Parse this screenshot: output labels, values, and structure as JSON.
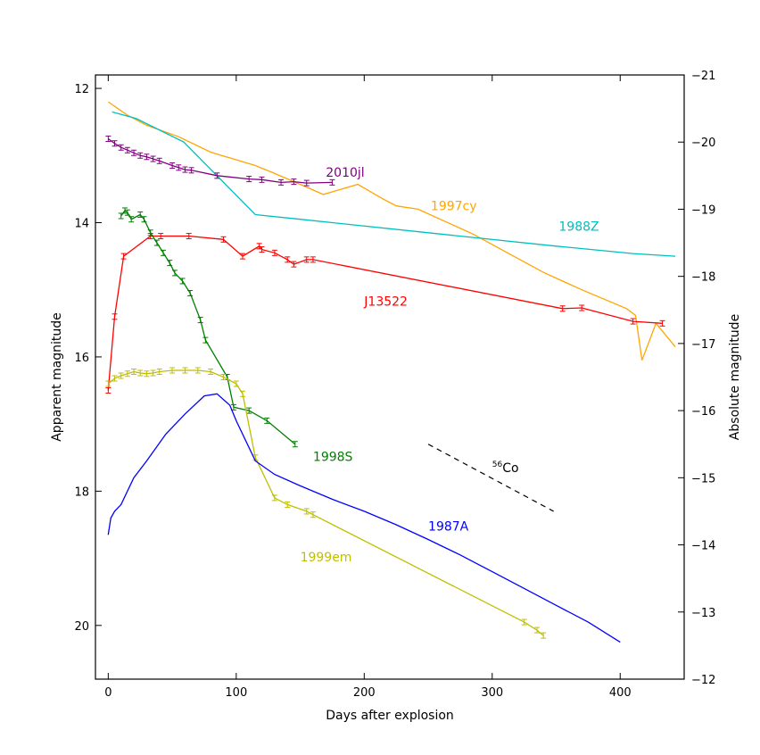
{
  "chart_data": {
    "type": "line",
    "xlabel": "Days after explosion",
    "ylabel": "Apparent magnitude",
    "ylabel_right": "Absolute magnitude",
    "xlim": [
      -10,
      450
    ],
    "ylim": [
      20.8,
      11.8
    ],
    "ylim_right": [
      -12,
      -21
    ],
    "x_ticks": [
      0,
      100,
      200,
      300,
      400
    ],
    "y_ticks": [
      12,
      14,
      16,
      18,
      20
    ],
    "y_right_ticks": [
      -21,
      -20,
      -19,
      -18,
      -17,
      -16,
      -15,
      -14,
      -13,
      -12
    ],
    "grid": false,
    "legend": "none",
    "annotation": {
      "label_prefix": "56",
      "label_text": "Co",
      "line_start": [
        250,
        17.3
      ],
      "line_end": [
        348,
        18.3
      ],
      "label_pos": [
        300,
        17.65
      ]
    },
    "series": [
      {
        "name": "1997cy",
        "color": "#FFA500",
        "errorbars": false,
        "label_pos": [
          252,
          13.75
        ],
        "x": [
          0,
          15,
          30,
          55,
          80,
          115,
          128,
          150,
          168,
          195,
          215,
          225,
          242,
          285,
          340,
          370,
          405,
          412,
          417,
          428,
          443
        ],
        "y": [
          12.2,
          12.4,
          12.55,
          12.72,
          12.95,
          13.15,
          13.25,
          13.43,
          13.58,
          13.43,
          13.65,
          13.75,
          13.8,
          14.17,
          14.74,
          15.0,
          15.28,
          15.38,
          16.05,
          15.5,
          15.85
        ]
      },
      {
        "name": "1988Z",
        "color": "#00BFBF",
        "errorbars": false,
        "label_pos": [
          352,
          14.05
        ],
        "x": [
          3,
          22,
          59,
          115,
          150,
          250,
          350,
          410,
          443
        ],
        "y": [
          12.35,
          12.45,
          12.8,
          13.88,
          13.95,
          14.15,
          14.35,
          14.46,
          14.5
        ]
      },
      {
        "name": "2010jl",
        "color": "#800080",
        "errorbars": true,
        "label_pos": [
          170,
          13.25
        ],
        "x": [
          0,
          5,
          10,
          15,
          20,
          25,
          30,
          35,
          40,
          50,
          55,
          60,
          65,
          85,
          110,
          120,
          135,
          145,
          155,
          175
        ],
        "y": [
          12.75,
          12.82,
          12.88,
          12.92,
          12.96,
          13.0,
          13.02,
          13.05,
          13.08,
          13.15,
          13.18,
          13.21,
          13.22,
          13.3,
          13.35,
          13.36,
          13.4,
          13.39,
          13.41,
          13.4
        ]
      },
      {
        "name": "J13522",
        "color": "#FF0000",
        "errorbars": true,
        "label_pos": [
          200,
          15.17
        ],
        "x": [
          0,
          5,
          12,
          33,
          41,
          63,
          90,
          105,
          118,
          120,
          130,
          140,
          145,
          155,
          160,
          355,
          370,
          410,
          433
        ],
        "y": [
          16.5,
          15.4,
          14.5,
          14.2,
          14.2,
          14.2,
          14.25,
          14.5,
          14.35,
          14.4,
          14.45,
          14.55,
          14.62,
          14.55,
          14.55,
          15.28,
          15.27,
          15.47,
          15.5
        ]
      },
      {
        "name": "1998S",
        "color": "#008000",
        "errorbars": true,
        "label_pos": [
          160,
          17.48
        ],
        "x": [
          10,
          13,
          15,
          18,
          25,
          28,
          33,
          38,
          43,
          48,
          52,
          58,
          64,
          72,
          76,
          93,
          98,
          110,
          124,
          146
        ],
        "y": [
          13.9,
          13.82,
          13.85,
          13.95,
          13.88,
          13.95,
          14.15,
          14.3,
          14.45,
          14.6,
          14.75,
          14.87,
          15.05,
          15.45,
          15.75,
          16.3,
          16.75,
          16.8,
          16.95,
          17.3
        ]
      },
      {
        "name": "1999em",
        "color": "#BFBF00",
        "errorbars": true,
        "label_pos": [
          150,
          18.98
        ],
        "x": [
          0,
          5,
          10,
          15,
          20,
          25,
          30,
          35,
          40,
          50,
          60,
          70,
          80,
          90,
          100,
          105,
          115,
          130,
          140,
          155,
          160,
          325,
          335,
          340
        ],
        "y": [
          16.4,
          16.32,
          16.28,
          16.25,
          16.22,
          16.24,
          16.25,
          16.24,
          16.22,
          16.2,
          16.2,
          16.2,
          16.22,
          16.3,
          16.4,
          16.55,
          17.5,
          18.1,
          18.2,
          18.3,
          18.35,
          19.95,
          20.07,
          20.15
        ]
      },
      {
        "name": "1987A",
        "color": "#0000FF",
        "errorbars": false,
        "label_pos": [
          250,
          18.52
        ],
        "x": [
          0,
          2,
          5,
          10,
          20,
          30,
          45,
          60,
          75,
          85,
          95,
          100,
          115,
          130,
          150,
          175,
          200,
          225,
          250,
          275,
          300,
          325,
          350,
          375,
          400
        ],
        "y": [
          18.65,
          18.4,
          18.3,
          18.2,
          17.8,
          17.55,
          17.15,
          16.85,
          16.58,
          16.55,
          16.72,
          16.95,
          17.55,
          17.75,
          17.92,
          18.12,
          18.3,
          18.5,
          18.72,
          18.95,
          19.2,
          19.45,
          19.7,
          19.95,
          20.25
        ]
      }
    ]
  }
}
